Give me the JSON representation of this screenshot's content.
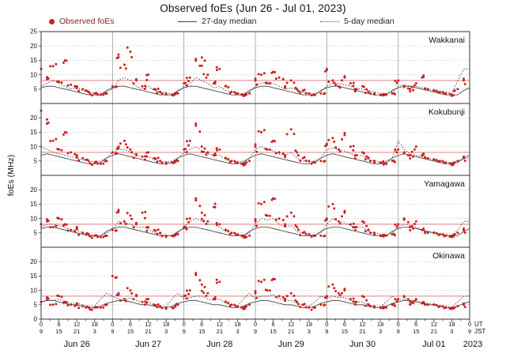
{
  "title": "Observed foEs (Jun 26 - Jul 01, 2023)",
  "ylabel": "foEs (MHz)",
  "legend": [
    {
      "label": "Observed foEs",
      "type": "dot"
    },
    {
      "label": "27-day median",
      "type": "solid"
    },
    {
      "label": "5-day median",
      "type": "dotted"
    }
  ],
  "axis": {
    "ut_tick_labels": [
      "0",
      "6",
      "12",
      "18"
    ],
    "jst_tick_labels": [
      "9",
      "15",
      "21",
      "3"
    ],
    "ut_label": "UT",
    "jst_label": "JST",
    "dates": [
      "Jun 26",
      "Jun 27",
      "Jun 28",
      "Jun 29",
      "Jun 30",
      "Jul 01"
    ],
    "year": "2023",
    "hours_total": 144,
    "red_reference_line_mhz": 8
  },
  "colors": {
    "observed": "#cc2020",
    "median27": "#3a3a3a",
    "median5": "#222222",
    "red_line": "#e08080",
    "grid": "#bbbbbb",
    "day_line": "#999999",
    "border": "#333333"
  },
  "chart_data": [
    {
      "station": "Wakkanai",
      "type": "scatter",
      "ylim": [
        0,
        25
      ],
      "ytick_step": 5,
      "x_step_hours": 2,
      "observed": [
        12,
        8.5,
        13,
        7.5,
        15,
        6.5,
        6,
        5,
        4,
        3.5,
        3,
        3.5,
        6,
        17,
        13.5,
        18,
        8,
        6,
        10,
        5,
        4,
        3.5,
        3,
        3.5,
        7,
        9,
        15.5,
        16,
        10,
        7,
        12,
        6,
        4,
        3.5,
        3,
        3.5,
        8,
        10,
        7,
        11,
        9,
        6,
        8,
        5,
        4.5,
        3.5,
        3,
        3.5,
        12,
        8,
        6,
        9,
        7,
        5,
        6,
        4,
        3.5,
        3,
        3,
        3.5,
        8,
        6,
        5,
        7,
        9,
        5,
        4.5,
        4,
        3.5,
        3,
        5,
        8
      ],
      "median_5day": [
        6,
        7,
        8,
        7,
        6,
        5,
        5.5,
        4.5,
        4,
        3.5,
        3.5,
        4,
        5,
        8,
        9,
        8,
        6,
        5,
        6,
        4.5,
        4,
        3.5,
        3.5,
        4,
        6,
        7,
        9,
        8,
        7,
        5.5,
        6,
        4.5,
        4,
        3.5,
        3.5,
        4,
        6,
        7,
        7.5,
        7,
        6,
        5,
        5.5,
        4.5,
        4,
        3.5,
        3.5,
        4,
        6,
        7,
        7,
        6.5,
        6,
        5,
        5,
        4.5,
        4,
        3.5,
        3.5,
        4,
        6,
        6.5,
        6,
        6,
        5.5,
        5,
        4.5,
        4,
        4,
        3.5,
        8,
        12
      ],
      "median_27day_daily_pattern": [
        5.5,
        6,
        6,
        5.5,
        5,
        4.5,
        4,
        3.5,
        3,
        3,
        3,
        4.5
      ]
    },
    {
      "station": "Kokubunji",
      "type": "scatter",
      "ylim": [
        0,
        25
      ],
      "ytick_step": 5,
      "x_step_hours": 2,
      "observed": [
        22.5,
        18,
        12,
        9,
        15,
        8,
        7,
        6,
        5,
        4.5,
        4,
        5,
        8,
        10,
        12,
        9,
        7,
        6.5,
        8,
        6,
        5,
        4.5,
        4.5,
        5,
        9,
        12,
        18,
        10,
        8,
        7,
        9,
        6,
        5,
        4.5,
        4,
        5,
        10,
        15,
        9,
        12,
        8,
        7,
        16,
        8,
        6,
        5,
        4.5,
        5,
        11,
        13,
        9,
        14,
        10,
        7,
        8,
        6,
        5,
        4.5,
        4,
        5,
        9,
        8,
        7,
        10,
        7,
        6,
        5.5,
        5,
        4.5,
        4,
        5,
        6
      ],
      "median_5day": [
        10,
        9,
        8,
        7.5,
        7,
        6.5,
        6,
        5.5,
        5,
        4.5,
        5,
        6,
        8,
        9,
        9,
        8,
        7,
        6.5,
        6.5,
        5.5,
        5,
        4.5,
        5,
        6,
        8,
        9,
        10,
        8.5,
        7.5,
        7,
        7,
        5.5,
        5,
        4.5,
        5,
        6,
        9,
        10,
        9,
        8.5,
        7.5,
        7,
        8,
        6,
        5,
        4.5,
        5,
        6,
        9,
        9.5,
        9,
        8.5,
        7.5,
        7,
        7,
        5.5,
        5,
        4.5,
        5,
        6,
        12,
        9,
        7.5,
        7,
        6.5,
        6,
        5.5,
        5,
        4.5,
        4.5,
        5,
        6
      ],
      "median_27day_daily_pattern": [
        7,
        7.5,
        7,
        6.5,
        6,
        5.5,
        5,
        4.5,
        4,
        4,
        4.5,
        6
      ]
    },
    {
      "station": "Yamagawa",
      "type": "scatter",
      "ylim": [
        0,
        25
      ],
      "ytick_step": 5,
      "x_step_hours": 2,
      "observed": [
        8,
        9,
        7,
        10,
        8,
        6,
        7,
        5,
        4.5,
        4,
        3.5,
        4,
        6,
        13,
        9,
        11,
        8,
        12,
        7,
        6,
        5,
        4,
        4,
        4.5,
        7,
        10,
        17,
        12,
        9,
        14,
        8,
        6,
        5,
        4.5,
        4,
        4,
        9,
        15,
        11,
        17,
        10,
        8,
        12,
        7,
        5,
        4.5,
        4,
        4,
        10,
        15,
        9,
        12,
        8,
        7,
        9,
        6,
        5,
        4,
        4,
        4.5,
        8,
        10,
        7,
        9,
        6,
        5,
        5,
        4.5,
        4,
        4,
        5,
        6
      ],
      "median_5day": [
        7,
        8,
        8,
        7.5,
        7,
        6,
        6,
        5,
        4.5,
        4,
        4,
        5,
        6,
        9,
        8.5,
        8,
        7,
        7,
        6.5,
        5,
        4.5,
        4,
        4,
        5,
        7,
        9,
        10,
        9,
        8,
        8,
        7,
        5.5,
        5,
        4.5,
        4,
        5,
        8,
        10,
        9.5,
        10,
        8,
        7,
        7.5,
        5.5,
        5,
        4.5,
        4,
        5,
        8,
        10,
        9,
        8.5,
        7.5,
        7,
        7,
        5.5,
        5,
        4.5,
        4,
        5,
        7,
        8,
        7.5,
        7,
        6,
        5.5,
        5,
        4.5,
        4.5,
        4,
        6,
        9
      ],
      "median_27day_daily_pattern": [
        6.5,
        7,
        7,
        6.5,
        6,
        5.5,
        5,
        4.5,
        4,
        4,
        4,
        5.5
      ]
    },
    {
      "station": "Okinawa",
      "type": "scatter",
      "ylim": [
        0,
        25
      ],
      "ytick_step": 5,
      "x_step_hours": 2,
      "observed": [
        6,
        7,
        5,
        8,
        6,
        5,
        5.5,
        4.5,
        4,
        4,
        4,
        5,
        15,
        9,
        7,
        10,
        8,
        6,
        7,
        5,
        4.5,
        4,
        4,
        5,
        8,
        10,
        16,
        12,
        9,
        7,
        13,
        6,
        5,
        4.5,
        4,
        5,
        9,
        13,
        10,
        14,
        8,
        7,
        9,
        6,
        5,
        4,
        4,
        5,
        8,
        12,
        9,
        10,
        7,
        6,
        8,
        5,
        4.5,
        4,
        4,
        5,
        7,
        8,
        6,
        7,
        5.5,
        5,
        5,
        4.5,
        4,
        4,
        4.5,
        5
      ],
      "median_5day": [
        6,
        6.5,
        6.5,
        7,
        6,
        5.5,
        5.5,
        5,
        4.5,
        4.5,
        7,
        9,
        8,
        7,
        6.5,
        7.5,
        6.5,
        6,
        6,
        5,
        4.5,
        4.5,
        7,
        9,
        7,
        7.5,
        8,
        8,
        7,
        6.5,
        7,
        5.5,
        5,
        4.5,
        7,
        9,
        7,
        8,
        8,
        8.5,
        7,
        6.5,
        6.5,
        5.5,
        5,
        4.5,
        6,
        8,
        7,
        8,
        7.5,
        7.5,
        6.5,
        6,
        6,
        5,
        4.5,
        4.5,
        6,
        8,
        6.5,
        7,
        6.5,
        6.5,
        6,
        5.5,
        5,
        4.5,
        4.5,
        4,
        6,
        8
      ],
      "median_27day_daily_pattern": [
        6,
        6.5,
        6.5,
        6,
        5.5,
        5,
        5,
        4.5,
        4,
        4,
        4.5,
        5.5
      ]
    }
  ]
}
